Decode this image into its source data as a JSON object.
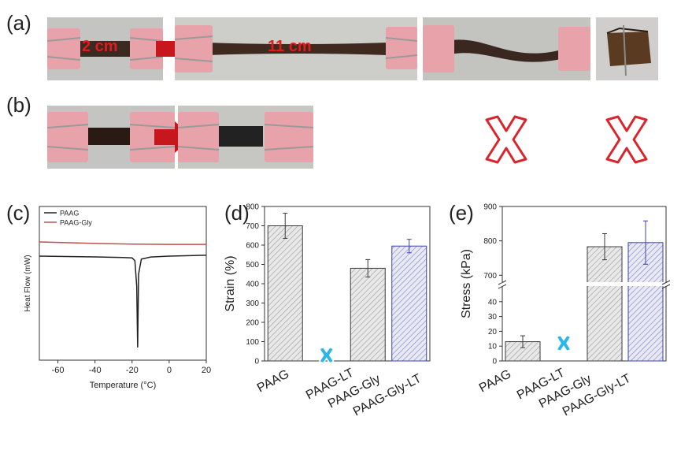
{
  "panels": {
    "a": "(a)",
    "b": "(b)",
    "c": "(c)",
    "d": "(d)",
    "e": "(e)"
  },
  "photos": {
    "a_initial_length": "2 cm",
    "a_stretched_length": "11 cm"
  },
  "colors": {
    "label_red": "#e21b1b",
    "arrow_red": "#c8161d",
    "cross_red": "#d9252b",
    "clip_pink": "#e7a3a9",
    "failed_marker": "#29b6e8",
    "bar_black": "#3a3a3a",
    "bar_blue": "#3a3fc4",
    "dsc_paag": "#222222",
    "dsc_paag_gly": "#c0504d"
  },
  "chart_data": [
    {
      "id": "c",
      "type": "line",
      "title": "",
      "xlabel": "Temperature (°C)",
      "ylabel": "Heat Flow (mW)",
      "xlim": [
        -70,
        20
      ],
      "xticks": [
        -60,
        -40,
        -20,
        0,
        20
      ],
      "yticks_shown": false,
      "legend": "top-left",
      "series": [
        {
          "name": "PAAG",
          "x": [
            -70,
            -40,
            -25,
            -20,
            -18.5,
            -17.5,
            -17,
            -16.5,
            -15,
            -10,
            0,
            20
          ],
          "y": [
            0.0,
            0.05,
            0.09,
            0.12,
            0.3,
            2.0,
            6.1,
            1.2,
            0.2,
            0.06,
            0.0,
            -0.06
          ]
        },
        {
          "name": "PAAG-Gly",
          "x": [
            -70,
            -40,
            -20,
            0,
            20
          ],
          "y": [
            -0.95,
            -0.85,
            -0.8,
            -0.78,
            -0.78
          ]
        }
      ]
    },
    {
      "id": "d",
      "type": "bar",
      "title": "",
      "xlabel": "",
      "ylabel": "Strain (%)",
      "ylim": [
        0,
        800
      ],
      "yticks": [
        0,
        100,
        200,
        300,
        400,
        500,
        600,
        700,
        800
      ],
      "categories": [
        "PAAG",
        "PAAG-LT",
        "PAAG-Gly",
        "PAAG-Gly-LT"
      ],
      "values": [
        700,
        null,
        480,
        595
      ],
      "errors": [
        65,
        null,
        45,
        35
      ],
      "failed": [
        false,
        true,
        false,
        false
      ]
    },
    {
      "id": "e",
      "type": "bar",
      "title": "",
      "xlabel": "",
      "ylabel": "Stress (kPa)",
      "axis_break": true,
      "lower_range": [
        0,
        50
      ],
      "lower_ticks": [
        0,
        10,
        20,
        30,
        40
      ],
      "upper_range": [
        680,
        900
      ],
      "upper_ticks": [
        700,
        800,
        900
      ],
      "categories": [
        "PAAG",
        "PAAG-LT",
        "PAAG-Gly",
        "PAAG-Gly-LT"
      ],
      "values": [
        13,
        null,
        783,
        795
      ],
      "errors": [
        4,
        null,
        38,
        63
      ],
      "failed": [
        false,
        true,
        false,
        false
      ]
    }
  ]
}
